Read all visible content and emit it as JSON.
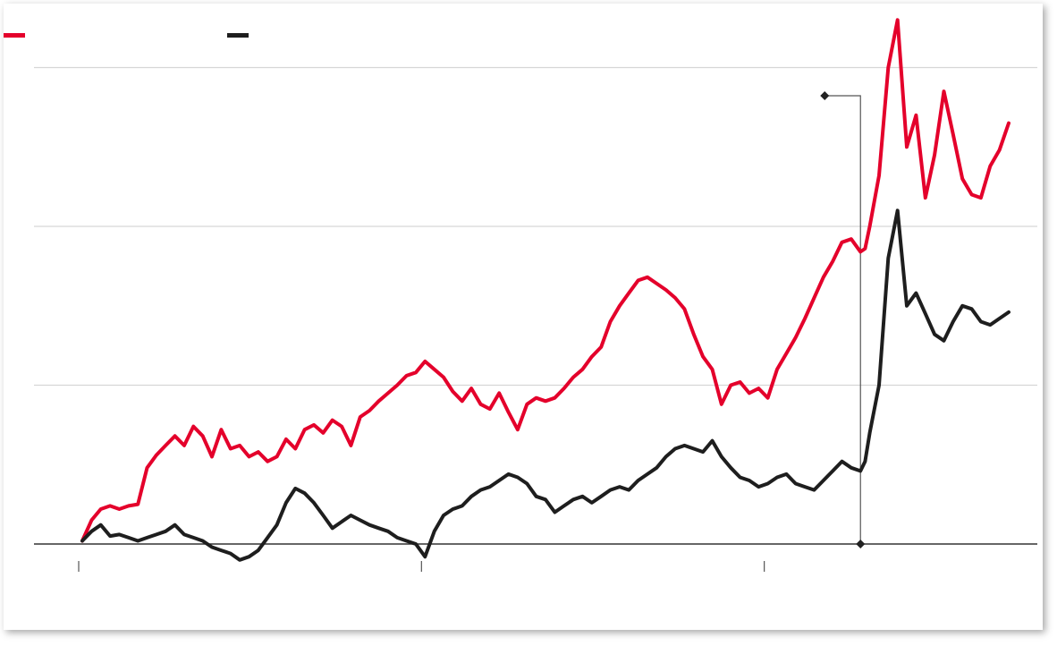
{
  "chart_data": {
    "type": "line",
    "title": "",
    "xlabel": "",
    "ylabel": "",
    "x_range": [
      0,
      100
    ],
    "ylim": [
      -10,
      340
    ],
    "grid_y": [
      0,
      100,
      200,
      300
    ],
    "x_ticks": [
      0,
      37,
      74
    ],
    "marker_x": 84,
    "legend": {
      "position": "top-left"
    },
    "series": [
      {
        "color": "#e4002b",
        "points": [
          [
            0,
            2
          ],
          [
            1,
            15
          ],
          [
            2,
            22
          ],
          [
            3,
            24
          ],
          [
            4,
            22
          ],
          [
            5,
            24
          ],
          [
            6,
            25
          ],
          [
            7,
            48
          ],
          [
            8,
            56
          ],
          [
            9,
            62
          ],
          [
            10,
            68
          ],
          [
            11,
            62
          ],
          [
            12,
            74
          ],
          [
            13,
            68
          ],
          [
            14,
            55
          ],
          [
            15,
            72
          ],
          [
            16,
            60
          ],
          [
            17,
            62
          ],
          [
            18,
            55
          ],
          [
            19,
            58
          ],
          [
            20,
            52
          ],
          [
            21,
            55
          ],
          [
            22,
            66
          ],
          [
            23,
            60
          ],
          [
            24,
            72
          ],
          [
            25,
            75
          ],
          [
            26,
            70
          ],
          [
            27,
            78
          ],
          [
            28,
            74
          ],
          [
            29,
            62
          ],
          [
            30,
            80
          ],
          [
            31,
            84
          ],
          [
            32,
            90
          ],
          [
            33,
            95
          ],
          [
            34,
            100
          ],
          [
            35,
            106
          ],
          [
            36,
            108
          ],
          [
            37,
            115
          ],
          [
            38,
            110
          ],
          [
            39,
            105
          ],
          [
            40,
            96
          ],
          [
            41,
            90
          ],
          [
            42,
            98
          ],
          [
            43,
            88
          ],
          [
            44,
            85
          ],
          [
            45,
            95
          ],
          [
            46,
            83
          ],
          [
            47,
            72
          ],
          [
            48,
            88
          ],
          [
            49,
            92
          ],
          [
            50,
            90
          ],
          [
            51,
            92
          ],
          [
            52,
            98
          ],
          [
            53,
            105
          ],
          [
            54,
            110
          ],
          [
            55,
            118
          ],
          [
            56,
            124
          ],
          [
            57,
            140
          ],
          [
            58,
            150
          ],
          [
            59,
            158
          ],
          [
            60,
            166
          ],
          [
            61,
            168
          ],
          [
            62,
            164
          ],
          [
            63,
            160
          ],
          [
            64,
            155
          ],
          [
            65,
            148
          ],
          [
            66,
            132
          ],
          [
            67,
            118
          ],
          [
            68,
            110
          ],
          [
            69,
            88
          ],
          [
            70,
            100
          ],
          [
            71,
            102
          ],
          [
            72,
            95
          ],
          [
            73,
            98
          ],
          [
            74,
            92
          ],
          [
            75,
            110
          ],
          [
            76,
            120
          ],
          [
            77,
            130
          ],
          [
            78,
            142
          ],
          [
            79,
            155
          ],
          [
            80,
            168
          ],
          [
            81,
            178
          ],
          [
            82,
            190
          ],
          [
            83,
            192
          ],
          [
            84,
            184
          ],
          [
            84.5,
            186
          ],
          [
            85,
            200
          ],
          [
            86,
            232
          ],
          [
            87,
            300
          ],
          [
            88,
            330
          ],
          [
            89,
            250
          ],
          [
            90,
            270
          ],
          [
            91,
            218
          ],
          [
            92,
            245
          ],
          [
            93,
            285
          ],
          [
            94,
            258
          ],
          [
            95,
            230
          ],
          [
            96,
            220
          ],
          [
            97,
            218
          ],
          [
            98,
            238
          ],
          [
            99,
            248
          ],
          [
            100,
            265
          ]
        ]
      },
      {
        "color": "#1e1e1e",
        "points": [
          [
            0,
            2
          ],
          [
            1,
            8
          ],
          [
            2,
            12
          ],
          [
            3,
            5
          ],
          [
            4,
            6
          ],
          [
            5,
            4
          ],
          [
            6,
            2
          ],
          [
            7,
            4
          ],
          [
            8,
            6
          ],
          [
            9,
            8
          ],
          [
            10,
            12
          ],
          [
            11,
            6
          ],
          [
            12,
            4
          ],
          [
            13,
            2
          ],
          [
            14,
            -2
          ],
          [
            15,
            -4
          ],
          [
            16,
            -6
          ],
          [
            17,
            -10
          ],
          [
            18,
            -8
          ],
          [
            19,
            -4
          ],
          [
            20,
            4
          ],
          [
            21,
            12
          ],
          [
            22,
            26
          ],
          [
            23,
            35
          ],
          [
            24,
            32
          ],
          [
            25,
            26
          ],
          [
            26,
            18
          ],
          [
            27,
            10
          ],
          [
            28,
            14
          ],
          [
            29,
            18
          ],
          [
            30,
            15
          ],
          [
            31,
            12
          ],
          [
            32,
            10
          ],
          [
            33,
            8
          ],
          [
            34,
            4
          ],
          [
            35,
            2
          ],
          [
            36,
            0
          ],
          [
            37,
            -8
          ],
          [
            38,
            8
          ],
          [
            39,
            18
          ],
          [
            40,
            22
          ],
          [
            41,
            24
          ],
          [
            42,
            30
          ],
          [
            43,
            34
          ],
          [
            44,
            36
          ],
          [
            45,
            40
          ],
          [
            46,
            44
          ],
          [
            47,
            42
          ],
          [
            48,
            38
          ],
          [
            49,
            30
          ],
          [
            50,
            28
          ],
          [
            51,
            20
          ],
          [
            52,
            24
          ],
          [
            53,
            28
          ],
          [
            54,
            30
          ],
          [
            55,
            26
          ],
          [
            56,
            30
          ],
          [
            57,
            34
          ],
          [
            58,
            36
          ],
          [
            59,
            34
          ],
          [
            60,
            40
          ],
          [
            61,
            44
          ],
          [
            62,
            48
          ],
          [
            63,
            55
          ],
          [
            64,
            60
          ],
          [
            65,
            62
          ],
          [
            66,
            60
          ],
          [
            67,
            58
          ],
          [
            68,
            65
          ],
          [
            69,
            55
          ],
          [
            70,
            48
          ],
          [
            71,
            42
          ],
          [
            72,
            40
          ],
          [
            73,
            36
          ],
          [
            74,
            38
          ],
          [
            75,
            42
          ],
          [
            76,
            44
          ],
          [
            77,
            38
          ],
          [
            78,
            36
          ],
          [
            79,
            34
          ],
          [
            80,
            40
          ],
          [
            81,
            46
          ],
          [
            82,
            52
          ],
          [
            83,
            48
          ],
          [
            84,
            46
          ],
          [
            84.5,
            52
          ],
          [
            85,
            70
          ],
          [
            86,
            100
          ],
          [
            87,
            180
          ],
          [
            88,
            210
          ],
          [
            89,
            150
          ],
          [
            90,
            158
          ],
          [
            91,
            145
          ],
          [
            92,
            132
          ],
          [
            93,
            128
          ],
          [
            94,
            140
          ],
          [
            95,
            150
          ],
          [
            96,
            148
          ],
          [
            97,
            140
          ],
          [
            98,
            138
          ],
          [
            99,
            142
          ],
          [
            100,
            146
          ]
        ]
      }
    ]
  }
}
